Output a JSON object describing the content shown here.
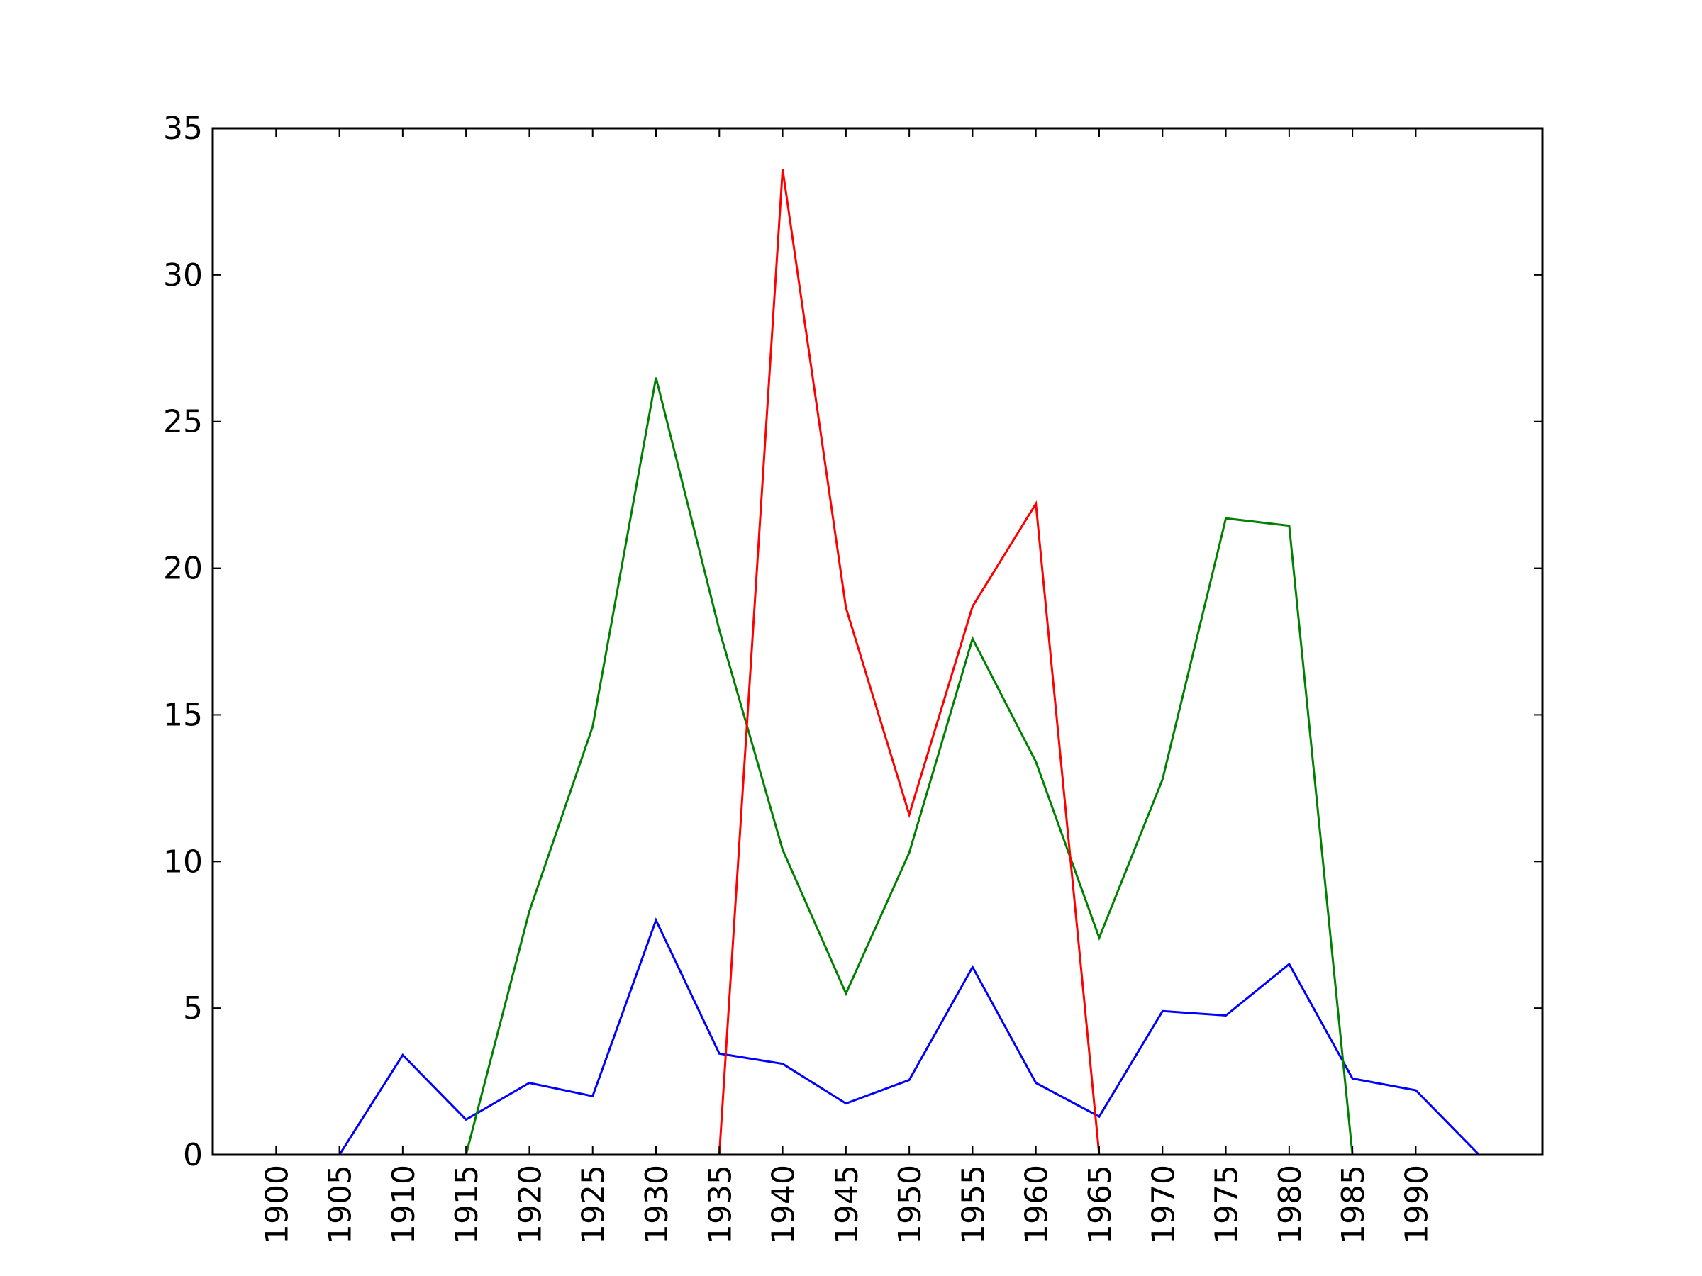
{
  "chart_data": {
    "type": "line",
    "x": [
      1900,
      1905,
      1910,
      1915,
      1920,
      1925,
      1930,
      1935,
      1940,
      1945,
      1950,
      1955,
      1960,
      1965,
      1970,
      1975,
      1980,
      1985,
      1990,
      1995
    ],
    "x_tick_labels": [
      "1900",
      "1905",
      "1910",
      "1915",
      "1920",
      "1925",
      "1930",
      "1935",
      "1940",
      "1945",
      "1950",
      "1955",
      "1960",
      "1965",
      "1970",
      "1975",
      "1980",
      "1985",
      "1990"
    ],
    "y_tick_labels": [
      "0",
      "5",
      "10",
      "15",
      "20",
      "25",
      "30",
      "35"
    ],
    "xlim": [
      1895,
      2000
    ],
    "ylim": [
      0,
      35
    ],
    "grid": false,
    "legend": "none",
    "series": [
      {
        "color": "#0000ff",
        "values": [
          0,
          0,
          3.4,
          1.2,
          2.45,
          2.0,
          8.0,
          3.45,
          3.1,
          1.75,
          2.55,
          6.4,
          2.45,
          1.3,
          4.9,
          4.75,
          6.5,
          2.6,
          2.2,
          0
        ]
      },
      {
        "color": "#008000",
        "values": [
          0,
          0,
          0,
          0,
          8.3,
          14.6,
          26.5,
          17.9,
          10.4,
          5.5,
          10.3,
          17.6,
          13.4,
          7.4,
          12.8,
          21.7,
          21.45,
          0,
          null,
          null
        ]
      },
      {
        "color": "#ff0000",
        "values": [
          0,
          0,
          0,
          0,
          0,
          0,
          0,
          0,
          33.6,
          18.65,
          11.6,
          18.7,
          22.2,
          0,
          null,
          null,
          null,
          null,
          null,
          null
        ]
      }
    ]
  }
}
